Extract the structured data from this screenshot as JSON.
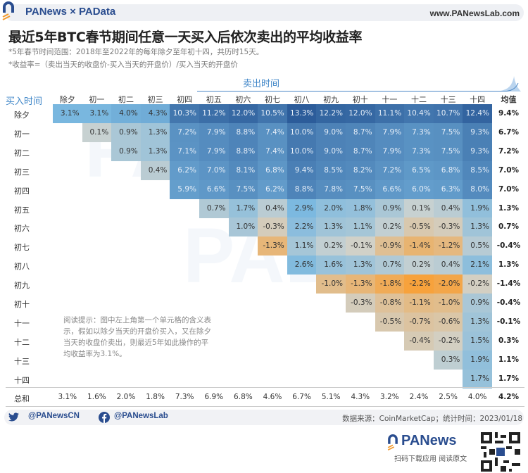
{
  "header": {
    "brand": "PANews × PAData",
    "site": "www.PANewsLab.com"
  },
  "title": "最近5年BTC春节期间任意一天买入后依次卖出的平均收益率",
  "subtitle1": "*5年春节时间范围：2018年至2022年的每年除夕至年初十四，共历时15天。",
  "subtitle2": "*收益率=（卖出当天的收盘价-买入当天的开盘价）/买入当天的开盘价",
  "note": "阅读提示：图中左上角第一个单元格的含义表示，假如以除夕当天的开盘价买入，又在除夕当天的收盘价卖出，则最近5年如此操作的平均收益率为3.1%。",
  "footer": {
    "twitter": "@PANewsCN",
    "facebook": "@PANewsLab",
    "source": "数据来源：CoinMarketCap；统计时间：2023/01/18",
    "app_brand": "PANews",
    "app_caption": "扫码下载应用 阅读原文"
  },
  "colors": {
    "pos_max": "#2c5c9a",
    "pos_mid": "#7ab8e0",
    "neutral": "#cfd3cf",
    "neg_max": "#f7a23c"
  },
  "chart_data": {
    "type": "heatmap",
    "xlabel": "卖出时间",
    "ylabel": "买入时间",
    "columns": [
      "除夕",
      "初一",
      "初二",
      "初三",
      "初四",
      "初五",
      "初六",
      "初七",
      "初八",
      "初九",
      "初十",
      "十一",
      "十二",
      "十三",
      "十四"
    ],
    "avg_label": "均值",
    "sum_label": "总和",
    "rows": [
      {
        "label": "除夕",
        "values": [
          "3.1%",
          "3.1%",
          "4.0%",
          "4.3%",
          "10.3%",
          "11.2%",
          "12.0%",
          "10.5%",
          "13.3%",
          "12.2%",
          "12.0%",
          "11.1%",
          "10.4%",
          "10.7%",
          "12.4%"
        ],
        "avg": "9.4%"
      },
      {
        "label": "初一",
        "values": [
          "0.1%",
          "0.9%",
          "1.3%",
          "7.2%",
          "7.9%",
          "8.8%",
          "7.4%",
          "10.0%",
          "9.0%",
          "8.7%",
          "7.9%",
          "7.3%",
          "7.5%",
          "9.3%"
        ],
        "avg": "6.7%"
      },
      {
        "label": "初二",
        "values": [
          "0.9%",
          "1.3%",
          "7.1%",
          "7.9%",
          "8.8%",
          "7.4%",
          "10.0%",
          "9.0%",
          "8.7%",
          "7.9%",
          "7.3%",
          "7.5%",
          "9.3%"
        ],
        "avg": "7.2%"
      },
      {
        "label": "初三",
        "values": [
          "0.4%",
          "6.2%",
          "7.0%",
          "8.1%",
          "6.8%",
          "9.4%",
          "8.5%",
          "8.2%",
          "7.2%",
          "6.5%",
          "6.8%",
          "8.5%"
        ],
        "avg": "7.0%"
      },
      {
        "label": "初四",
        "values": [
          "5.9%",
          "6.6%",
          "7.5%",
          "6.2%",
          "8.8%",
          "7.8%",
          "7.5%",
          "6.6%",
          "6.0%",
          "6.3%",
          "8.0%"
        ],
        "avg": "7.0%"
      },
      {
        "label": "初五",
        "values": [
          "0.7%",
          "1.7%",
          "0.4%",
          "2.9%",
          "2.0%",
          "1.8%",
          "0.9%",
          "0.1%",
          "0.4%",
          "1.9%"
        ],
        "avg": "1.3%"
      },
      {
        "label": "初六",
        "values": [
          "1.0%",
          "-0.3%",
          "2.2%",
          "1.3%",
          "1.1%",
          "0.2%",
          "-0.5%",
          "-0.3%",
          "1.3%"
        ],
        "avg": "0.7%"
      },
      {
        "label": "初七",
        "values": [
          "-1.3%",
          "1.1%",
          "0.2%",
          "-0.1%",
          "-0.9%",
          "-1.4%",
          "-1.2%",
          "0.5%"
        ],
        "avg": "-0.4%"
      },
      {
        "label": "初八",
        "values": [
          "2.6%",
          "1.6%",
          "1.3%",
          "0.7%",
          "0.2%",
          "0.4%",
          "2.1%"
        ],
        "avg": "1.3%"
      },
      {
        "label": "初九",
        "values": [
          "-1.0%",
          "-1.3%",
          "-1.8%",
          "-2.2%",
          "-2.0%",
          "-0.2%"
        ],
        "avg": "-1.4%"
      },
      {
        "label": "初十",
        "values": [
          "-0.3%",
          "-0.8%",
          "-1.1%",
          "-1.0%",
          "0.9%"
        ],
        "avg": "-0.4%"
      },
      {
        "label": "十一",
        "values": [
          "-0.5%",
          "-0.7%",
          "-0.6%",
          "1.3%"
        ],
        "avg": "-0.1%"
      },
      {
        "label": "十二",
        "values": [
          "-0.4%",
          "-0.2%",
          "1.5%"
        ],
        "avg": "0.3%"
      },
      {
        "label": "十三",
        "values": [
          "0.3%",
          "1.9%"
        ],
        "avg": "1.1%"
      },
      {
        "label": "十四",
        "values": [
          "1.7%"
        ],
        "avg": "1.7%"
      }
    ],
    "sums": [
      "3.1%",
      "1.6%",
      "2.0%",
      "1.8%",
      "7.3%",
      "6.9%",
      "6.8%",
      "4.6%",
      "6.7%",
      "5.1%",
      "4.3%",
      "3.2%",
      "2.4%",
      "2.5%",
      "4.0%"
    ],
    "sum_avg": "4.2%"
  }
}
